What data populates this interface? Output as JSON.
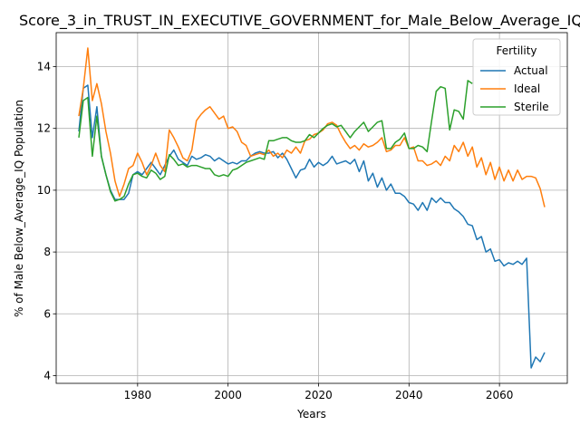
{
  "chart_data": {
    "type": "line",
    "title": "Score_3_in_TRUST_IN_EXECUTIVE_GOVERNMENT_for_Male_Below_Average_IQ",
    "xlabel": "Years",
    "ylabel": "% of Male Below_Average_IQ Population",
    "xlim": [
      1962,
      2075
    ],
    "ylim": [
      3.75,
      15.1
    ],
    "xticks": [
      1980,
      2000,
      2020,
      2040,
      2060
    ],
    "yticks": [
      4,
      6,
      8,
      10,
      12,
      14
    ],
    "grid": true,
    "legend": {
      "title": "Fertility",
      "position": "top-right"
    },
    "x": [
      1967,
      1968,
      1969,
      1970,
      1971,
      1972,
      1973,
      1974,
      1975,
      1976,
      1977,
      1978,
      1979,
      1980,
      1981,
      1982,
      1983,
      1984,
      1985,
      1986,
      1987,
      1988,
      1989,
      1990,
      1991,
      1992,
      1993,
      1994,
      1995,
      1996,
      1997,
      1998,
      1999,
      2000,
      2001,
      2002,
      2003,
      2004,
      2005,
      2006,
      2007,
      2008,
      2009,
      2010,
      2011,
      2012,
      2013,
      2014,
      2015,
      2016,
      2017,
      2018,
      2019,
      2020,
      2021,
      2022,
      2023,
      2024,
      2025,
      2026,
      2027,
      2028,
      2029,
      2030,
      2031,
      2032,
      2033,
      2034,
      2035,
      2036,
      2037,
      2038,
      2039,
      2040,
      2041,
      2042,
      2043,
      2044,
      2045,
      2046,
      2047,
      2048,
      2049,
      2050,
      2051,
      2052,
      2053,
      2054,
      2055,
      2056,
      2057,
      2058,
      2059,
      2060,
      2061,
      2062,
      2063,
      2064,
      2065,
      2066,
      2067,
      2068,
      2069,
      2070
    ],
    "series": [
      {
        "name": "Actual",
        "color": "#1f77b4",
        "values": [
          11.9,
          13.3,
          13.4,
          11.7,
          12.7,
          11.1,
          10.5,
          10.0,
          9.7,
          9.7,
          9.7,
          9.9,
          10.5,
          10.6,
          10.5,
          10.7,
          10.9,
          10.7,
          10.5,
          10.8,
          11.1,
          11.3,
          11.0,
          10.9,
          10.8,
          11.1,
          11.0,
          11.05,
          11.15,
          11.1,
          10.95,
          11.05,
          10.95,
          10.85,
          10.9,
          10.85,
          10.95,
          10.95,
          11.1,
          11.2,
          11.25,
          11.2,
          11.2,
          11.25,
          11.05,
          11.2,
          11.0,
          10.7,
          10.4,
          10.65,
          10.7,
          11.0,
          10.75,
          10.9,
          10.8,
          10.9,
          11.1,
          10.85,
          10.9,
          10.95,
          10.85,
          11.0,
          10.6,
          10.95,
          10.3,
          10.55,
          10.1,
          10.4,
          10.0,
          10.2,
          9.9,
          9.9,
          9.8,
          9.6,
          9.55,
          9.35,
          9.6,
          9.35,
          9.75,
          9.6,
          9.75,
          9.6,
          9.6,
          9.4,
          9.3,
          9.15,
          8.9,
          8.85,
          8.4,
          8.5,
          8.0,
          8.1,
          7.7,
          7.75,
          7.55,
          7.65,
          7.6,
          7.7,
          7.6,
          7.8,
          4.25,
          4.6,
          4.45,
          4.75
        ]
      },
      {
        "name": "Ideal",
        "color": "#ff7f0e",
        "values": [
          12.4,
          13.3,
          14.6,
          12.9,
          13.45,
          12.8,
          11.9,
          11.2,
          10.3,
          9.8,
          10.2,
          10.7,
          10.8,
          11.2,
          10.9,
          10.5,
          10.8,
          11.2,
          10.8,
          10.6,
          11.95,
          11.7,
          11.4,
          11.05,
          10.95,
          11.3,
          12.25,
          12.45,
          12.6,
          12.7,
          12.5,
          12.3,
          12.4,
          12.0,
          12.05,
          11.9,
          11.55,
          11.45,
          11.1,
          11.15,
          11.2,
          11.15,
          11.3,
          11.1,
          11.2,
          11.05,
          11.3,
          11.2,
          11.4,
          11.2,
          11.6,
          11.65,
          11.8,
          11.85,
          11.95,
          12.15,
          12.2,
          12.1,
          11.8,
          11.55,
          11.35,
          11.45,
          11.3,
          11.5,
          11.4,
          11.45,
          11.55,
          11.7,
          11.25,
          11.3,
          11.45,
          11.45,
          11.7,
          11.35,
          11.4,
          10.95,
          10.95,
          10.8,
          10.85,
          10.95,
          10.8,
          11.1,
          10.95,
          11.45,
          11.25,
          11.55,
          11.1,
          11.4,
          10.75,
          11.05,
          10.5,
          10.9,
          10.35,
          10.75,
          10.3,
          10.65,
          10.3,
          10.65,
          10.35,
          10.45,
          10.45,
          10.4,
          10.05,
          9.45
        ]
      },
      {
        "name": "Sterile",
        "color": "#2ca02c",
        "values": [
          11.7,
          12.9,
          13.0,
          11.1,
          12.4,
          11.1,
          10.5,
          9.95,
          9.65,
          9.7,
          9.8,
          10.2,
          10.5,
          10.55,
          10.45,
          10.4,
          10.65,
          10.55,
          10.35,
          10.45,
          11.15,
          11.0,
          10.8,
          10.85,
          10.75,
          10.8,
          10.8,
          10.75,
          10.7,
          10.7,
          10.5,
          10.45,
          10.5,
          10.45,
          10.65,
          10.7,
          10.8,
          10.9,
          10.95,
          11.0,
          11.05,
          11.0,
          11.6,
          11.6,
          11.65,
          11.7,
          11.7,
          11.6,
          11.55,
          11.55,
          11.6,
          11.8,
          11.7,
          11.85,
          12.0,
          12.1,
          12.15,
          12.05,
          12.1,
          11.9,
          11.7,
          11.9,
          12.05,
          12.2,
          11.9,
          12.05,
          12.2,
          12.25,
          11.35,
          11.35,
          11.55,
          11.65,
          11.85,
          11.35,
          11.35,
          11.45,
          11.4,
          11.25,
          12.25,
          13.2,
          13.35,
          13.3,
          11.95,
          12.6,
          12.55,
          12.3,
          13.55,
          13.45,
          null,
          null,
          null,
          null,
          null,
          null,
          null,
          null,
          null,
          null,
          null,
          null,
          null,
          null,
          null,
          null
        ]
      }
    ]
  }
}
